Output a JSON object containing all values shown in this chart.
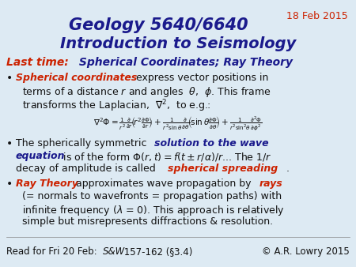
{
  "bg_color": "#ddeaf3",
  "title1": "Geology 5640/6640",
  "title2": "Introduction to Seismology",
  "date": "18 Feb 2015",
  "copyright": "© A.R. Lowry 2015",
  "read_line": "Read for Fri 20 Feb: S&W 157-162 (§3.4)",
  "navy": "#1a1a8c",
  "red": "#cc2200",
  "black": "#111111"
}
